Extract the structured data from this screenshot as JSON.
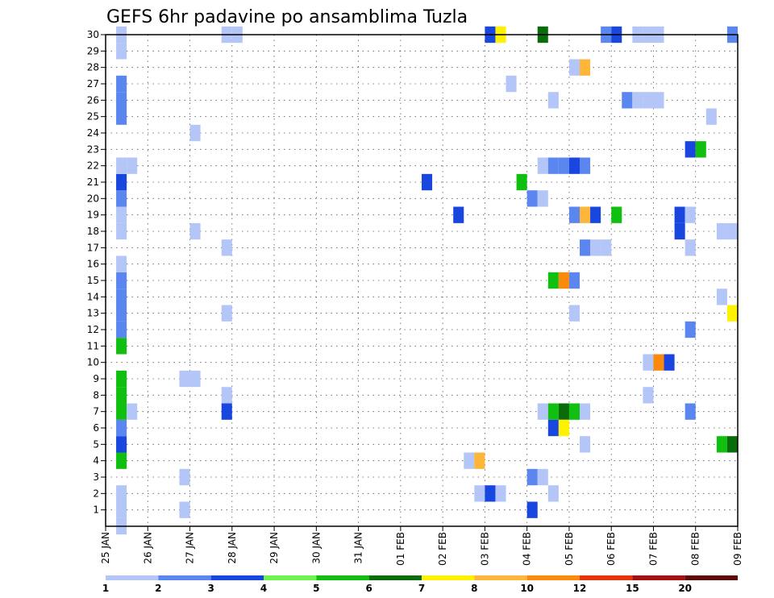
{
  "chart_data": {
    "type": "heatmap",
    "title": "GEFS 6hr padavine po ansamblima Tuzla",
    "xlabel": "",
    "ylabel": "",
    "x_ticks": [
      "25 JAN",
      "26 JAN",
      "27 JAN",
      "28 JAN",
      "29 JAN",
      "30 JAN",
      "31 JAN",
      "01 FEB",
      "02 FEB",
      "03 FEB",
      "04 FEB",
      "05 FEB",
      "06 FEB",
      "07 FEB",
      "08 FEB",
      "09 FEB"
    ],
    "x_range_days": [
      0,
      15
    ],
    "step_days": 0.25,
    "y_range": [
      0,
      30
    ],
    "y_ticks": [
      1,
      2,
      3,
      4,
      5,
      6,
      7,
      8,
      9,
      10,
      11,
      12,
      13,
      14,
      15,
      16,
      17,
      18,
      19,
      20,
      21,
      22,
      23,
      24,
      25,
      26,
      27,
      28,
      29,
      30
    ],
    "grid": true,
    "legend_position": "bottom",
    "colorbar": {
      "levels": [
        1,
        2,
        3,
        4,
        5,
        6,
        7,
        8,
        10,
        12,
        15,
        20
      ],
      "colors": [
        "#b3c6f7",
        "#5b86f0",
        "#1846df",
        "#6ef24c",
        "#10bf10",
        "#0a6b0a",
        "#fff200",
        "#fdb53a",
        "#fb8a0c",
        "#e5360b",
        "#a41010",
        "#5c0a0a"
      ]
    },
    "cells": [
      {
        "x": 0.25,
        "y": 0,
        "v": 1
      },
      {
        "x": 0.25,
        "y": 1,
        "v": 1
      },
      {
        "x": 0.25,
        "y": 2,
        "v": 1
      },
      {
        "x": 0.25,
        "y": 4,
        "v": 5
      },
      {
        "x": 0.25,
        "y": 5,
        "v": 3
      },
      {
        "x": 0.25,
        "y": 6,
        "v": 2
      },
      {
        "x": 0.25,
        "y": 7,
        "v": 5
      },
      {
        "x": 0.5,
        "y": 7,
        "v": 1
      },
      {
        "x": 0.25,
        "y": 8,
        "v": 5
      },
      {
        "x": 0.25,
        "y": 9,
        "v": 5
      },
      {
        "x": 0.25,
        "y": 11,
        "v": 5
      },
      {
        "x": 0.25,
        "y": 12,
        "v": 2
      },
      {
        "x": 0.25,
        "y": 13,
        "v": 2
      },
      {
        "x": 0.25,
        "y": 14,
        "v": 2
      },
      {
        "x": 0.25,
        "y": 15,
        "v": 2
      },
      {
        "x": 0.25,
        "y": 16,
        "v": 1
      },
      {
        "x": 0.25,
        "y": 18,
        "v": 1
      },
      {
        "x": 0.25,
        "y": 19,
        "v": 1
      },
      {
        "x": 0.25,
        "y": 20,
        "v": 2
      },
      {
        "x": 0.25,
        "y": 21,
        "v": 3
      },
      {
        "x": 0.25,
        "y": 22,
        "v": 1
      },
      {
        "x": 0.5,
        "y": 22,
        "v": 1
      },
      {
        "x": 0.25,
        "y": 25,
        "v": 2
      },
      {
        "x": 0.25,
        "y": 26,
        "v": 2
      },
      {
        "x": 0.25,
        "y": 27,
        "v": 2
      },
      {
        "x": 0.25,
        "y": 29,
        "v": 1
      },
      {
        "x": 0.25,
        "y": 30,
        "v": 1
      },
      {
        "x": 1.75,
        "y": 1,
        "v": 1
      },
      {
        "x": 1.75,
        "y": 3,
        "v": 1
      },
      {
        "x": 1.75,
        "y": 9,
        "v": 1
      },
      {
        "x": 2.0,
        "y": 9,
        "v": 1
      },
      {
        "x": 2.0,
        "y": 18,
        "v": 1
      },
      {
        "x": 2.0,
        "y": 24,
        "v": 1
      },
      {
        "x": 2.75,
        "y": 7,
        "v": 3
      },
      {
        "x": 2.75,
        "y": 8,
        "v": 1
      },
      {
        "x": 2.75,
        "y": 13,
        "v": 1
      },
      {
        "x": 2.75,
        "y": 17,
        "v": 1
      },
      {
        "x": 2.75,
        "y": 30,
        "v": 1
      },
      {
        "x": 3.0,
        "y": 30,
        "v": 1
      },
      {
        "x": 7.5,
        "y": 21,
        "v": 3
      },
      {
        "x": 8.25,
        "y": 19,
        "v": 3
      },
      {
        "x": 8.5,
        "y": 4,
        "v": 1
      },
      {
        "x": 8.75,
        "y": 4,
        "v": 8
      },
      {
        "x": 8.75,
        "y": 2,
        "v": 1
      },
      {
        "x": 9.0,
        "y": 2,
        "v": 3
      },
      {
        "x": 9.25,
        "y": 2,
        "v": 1
      },
      {
        "x": 9.0,
        "y": 30,
        "v": 3
      },
      {
        "x": 9.25,
        "y": 30,
        "v": 7
      },
      {
        "x": 9.5,
        "y": 27,
        "v": 1
      },
      {
        "x": 9.75,
        "y": 21,
        "v": 5
      },
      {
        "x": 10.0,
        "y": 1,
        "v": 3
      },
      {
        "x": 10.0,
        "y": 3,
        "v": 2
      },
      {
        "x": 10.25,
        "y": 3,
        "v": 1
      },
      {
        "x": 10.0,
        "y": 20,
        "v": 2
      },
      {
        "x": 10.25,
        "y": 20,
        "v": 1
      },
      {
        "x": 10.25,
        "y": 7,
        "v": 1
      },
      {
        "x": 10.5,
        "y": 7,
        "v": 5
      },
      {
        "x": 10.75,
        "y": 7,
        "v": 6
      },
      {
        "x": 11.0,
        "y": 7,
        "v": 5
      },
      {
        "x": 11.25,
        "y": 7,
        "v": 1
      },
      {
        "x": 10.5,
        "y": 6,
        "v": 3
      },
      {
        "x": 10.75,
        "y": 6,
        "v": 7
      },
      {
        "x": 10.5,
        "y": 2,
        "v": 1
      },
      {
        "x": 10.5,
        "y": 15,
        "v": 5
      },
      {
        "x": 10.75,
        "y": 15,
        "v": 10
      },
      {
        "x": 11.0,
        "y": 15,
        "v": 2
      },
      {
        "x": 10.25,
        "y": 22,
        "v": 1
      },
      {
        "x": 10.5,
        "y": 22,
        "v": 2
      },
      {
        "x": 10.75,
        "y": 22,
        "v": 2
      },
      {
        "x": 11.0,
        "y": 22,
        "v": 3
      },
      {
        "x": 11.25,
        "y": 22,
        "v": 2
      },
      {
        "x": 10.5,
        "y": 26,
        "v": 1
      },
      {
        "x": 10.25,
        "y": 30,
        "v": 6
      },
      {
        "x": 11.0,
        "y": 13,
        "v": 1
      },
      {
        "x": 11.0,
        "y": 19,
        "v": 2
      },
      {
        "x": 11.25,
        "y": 19,
        "v": 8
      },
      {
        "x": 11.5,
        "y": 19,
        "v": 3
      },
      {
        "x": 11.0,
        "y": 28,
        "v": 1
      },
      {
        "x": 11.25,
        "y": 28,
        "v": 8
      },
      {
        "x": 11.25,
        "y": 5,
        "v": 1
      },
      {
        "x": 11.25,
        "y": 17,
        "v": 2
      },
      {
        "x": 11.5,
        "y": 17,
        "v": 1
      },
      {
        "x": 11.75,
        "y": 17,
        "v": 1
      },
      {
        "x": 11.75,
        "y": 30,
        "v": 2
      },
      {
        "x": 12.0,
        "y": 30,
        "v": 3
      },
      {
        "x": 12.0,
        "y": 19,
        "v": 5
      },
      {
        "x": 12.25,
        "y": 26,
        "v": 2
      },
      {
        "x": 12.5,
        "y": 26,
        "v": 1
      },
      {
        "x": 12.75,
        "y": 26,
        "v": 1
      },
      {
        "x": 13.0,
        "y": 26,
        "v": 1
      },
      {
        "x": 12.5,
        "y": 30,
        "v": 1
      },
      {
        "x": 12.75,
        "y": 30,
        "v": 1
      },
      {
        "x": 13.0,
        "y": 30,
        "v": 1
      },
      {
        "x": 12.75,
        "y": 8,
        "v": 1
      },
      {
        "x": 12.75,
        "y": 10,
        "v": 1
      },
      {
        "x": 13.0,
        "y": 10,
        "v": 10
      },
      {
        "x": 13.25,
        "y": 10,
        "v": 3
      },
      {
        "x": 13.5,
        "y": 18,
        "v": 3
      },
      {
        "x": 13.5,
        "y": 19,
        "v": 3
      },
      {
        "x": 13.75,
        "y": 19,
        "v": 1
      },
      {
        "x": 13.75,
        "y": 7,
        "v": 2
      },
      {
        "x": 13.75,
        "y": 12,
        "v": 2
      },
      {
        "x": 13.75,
        "y": 17,
        "v": 1
      },
      {
        "x": 13.75,
        "y": 23,
        "v": 3
      },
      {
        "x": 14.0,
        "y": 23,
        "v": 5
      },
      {
        "x": 14.25,
        "y": 25,
        "v": 1
      },
      {
        "x": 14.5,
        "y": 14,
        "v": 1
      },
      {
        "x": 14.5,
        "y": 18,
        "v": 1
      },
      {
        "x": 14.75,
        "y": 18,
        "v": 1
      },
      {
        "x": 14.5,
        "y": 5,
        "v": 5
      },
      {
        "x": 14.75,
        "y": 5,
        "v": 6
      },
      {
        "x": 14.75,
        "y": 13,
        "v": 7
      },
      {
        "x": 14.75,
        "y": 30,
        "v": 2
      }
    ]
  }
}
